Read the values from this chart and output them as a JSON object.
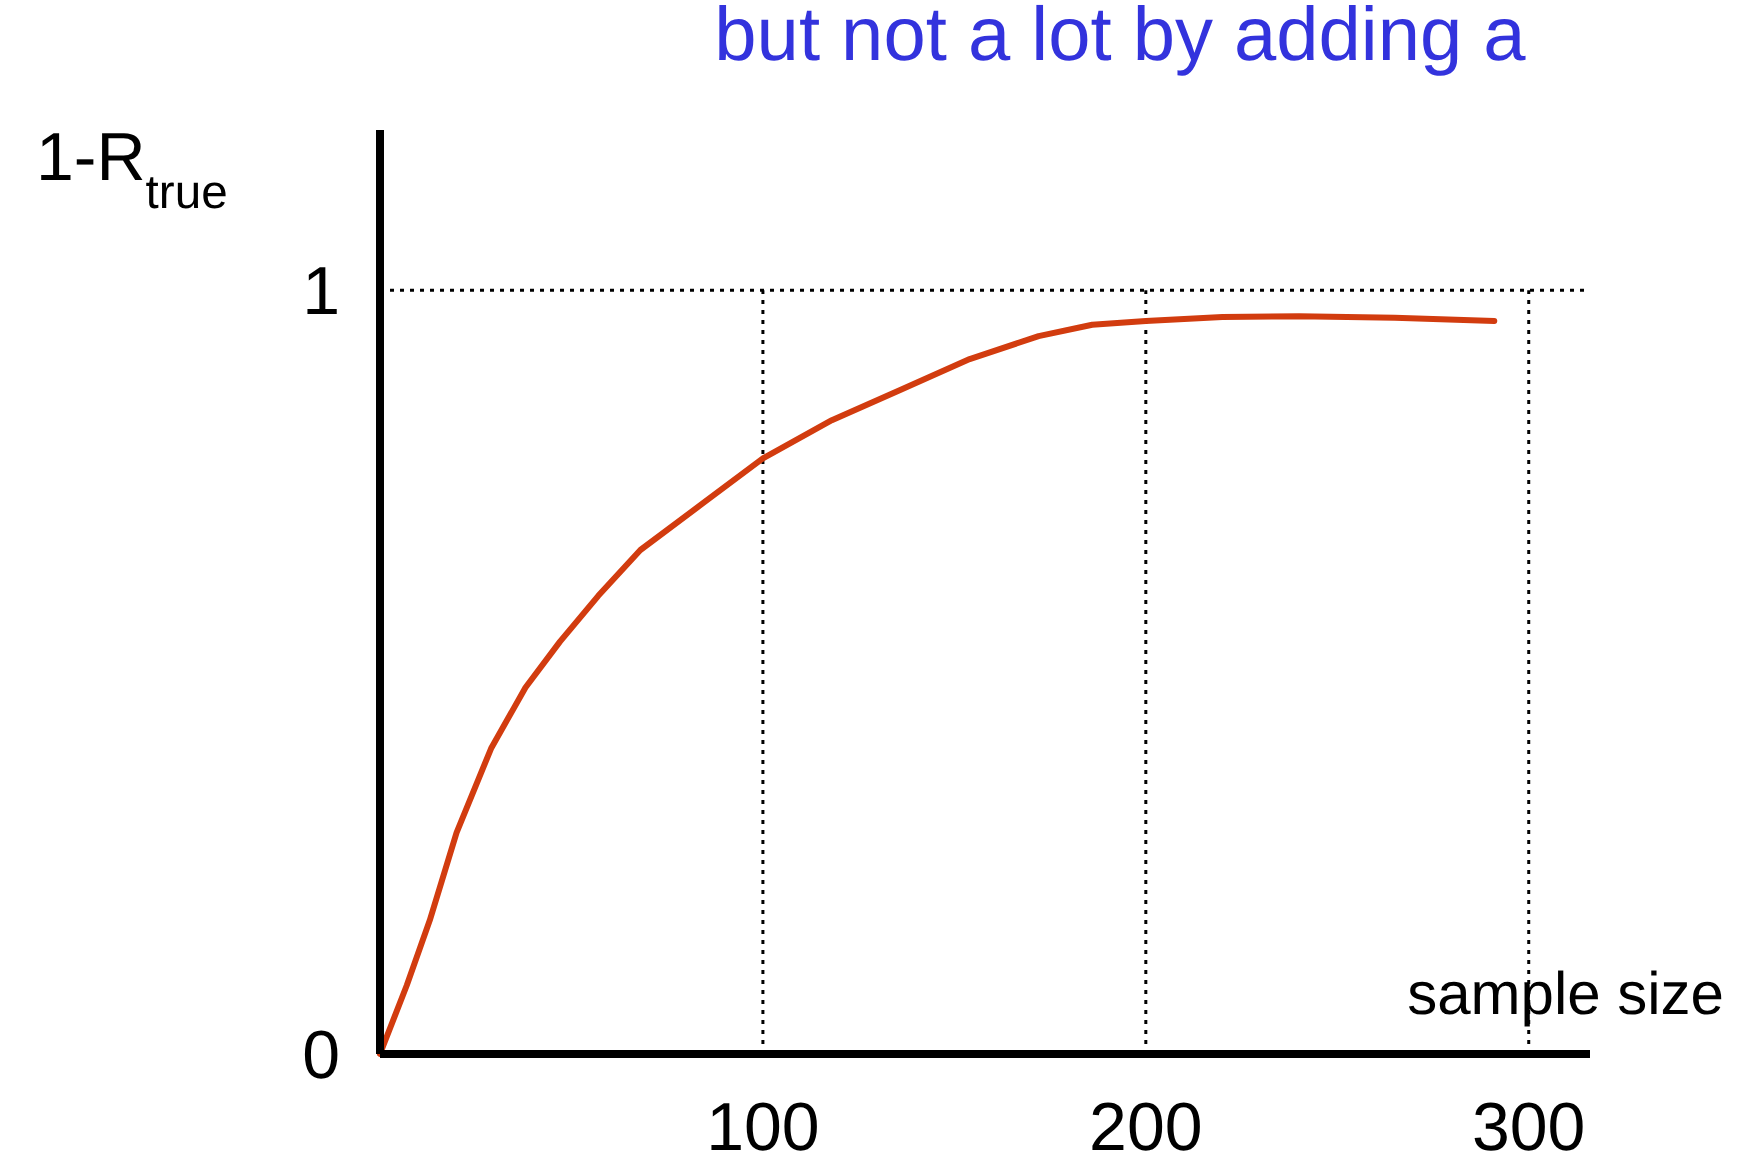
{
  "chart_data": {
    "type": "line",
    "title": "but not a lot by adding a",
    "xlabel": "sample size",
    "ylabel": "1-R$_{true}$",
    "x": [
      0,
      7,
      13,
      20,
      29,
      38,
      47,
      57,
      68,
      84,
      100,
      118,
      136,
      154,
      172,
      186,
      200,
      220,
      240,
      265,
      291
    ],
    "series": [
      {
        "color": "#d23c0f",
        "values": [
          0,
          0.09,
          0.175,
          0.29,
          0.4,
          0.48,
          0.54,
          0.6,
          0.66,
          0.72,
          0.78,
          0.83,
          0.87,
          0.91,
          0.94,
          0.955,
          0.96,
          0.965,
          0.966,
          0.964,
          0.96
        ]
      }
    ],
    "xlim": [
      0,
      316
    ],
    "ylim": [
      0,
      1.21
    ],
    "xticks": [
      100,
      200,
      300
    ],
    "yticks": [
      0,
      1
    ],
    "grid": true,
    "line_style": "solid",
    "marker": "none"
  }
}
